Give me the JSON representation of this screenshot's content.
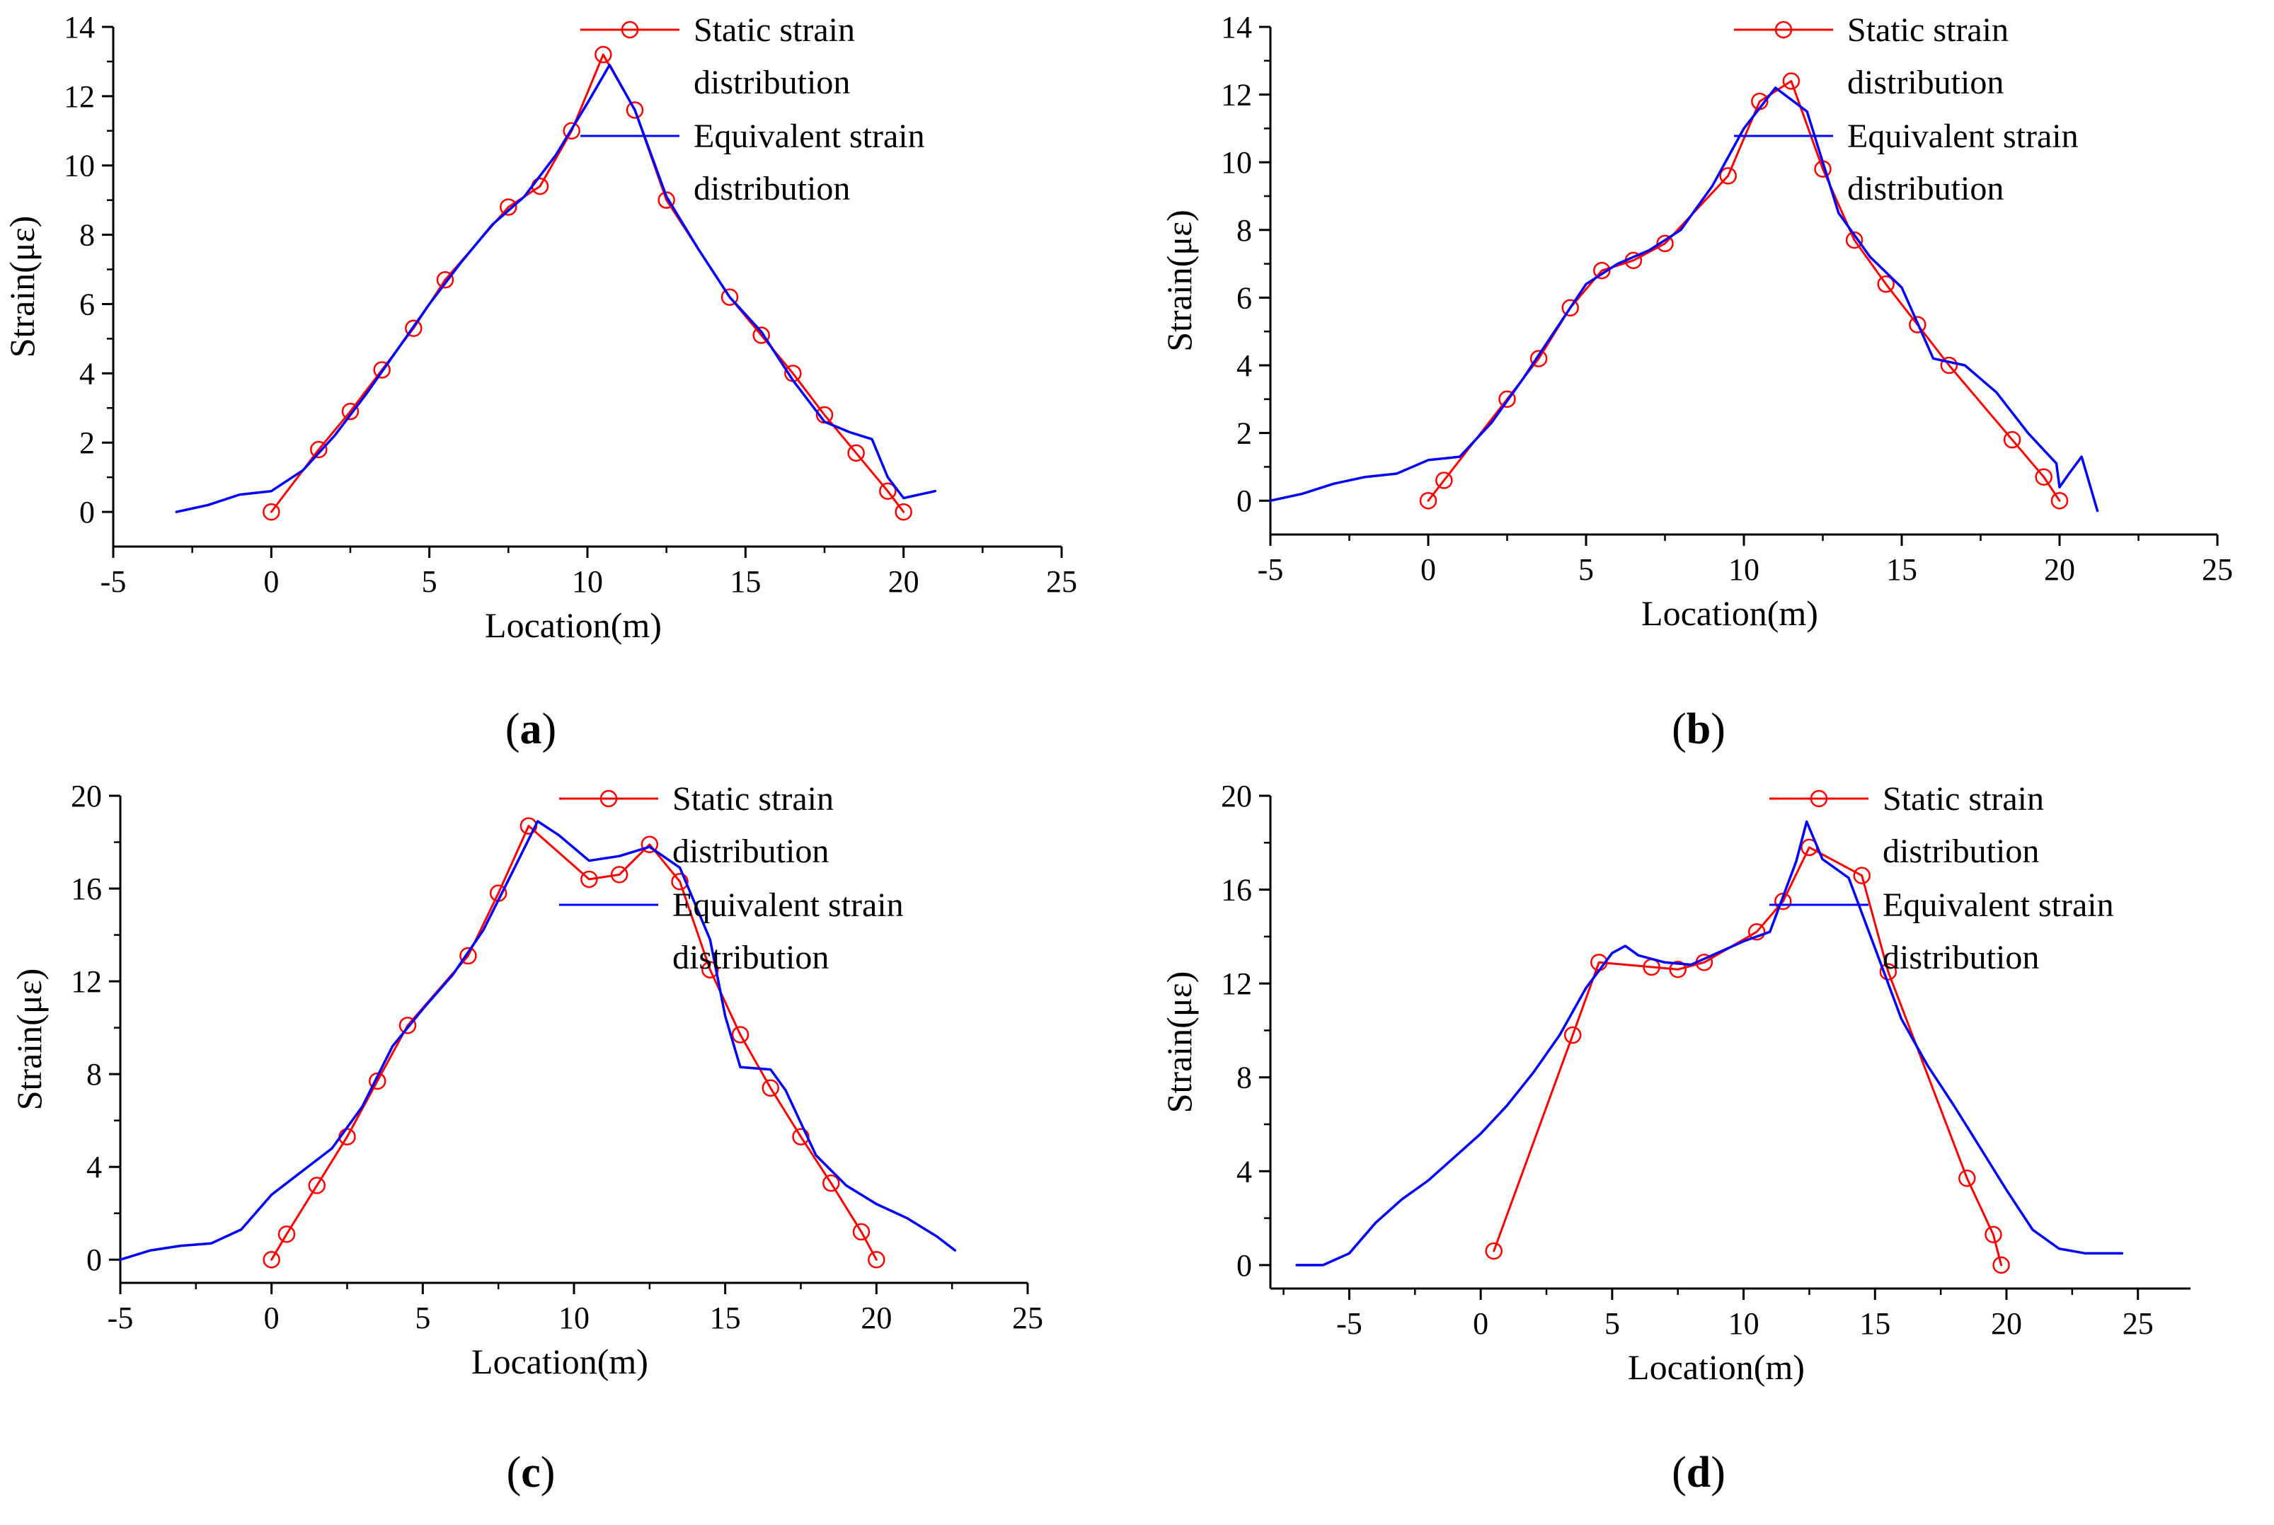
{
  "figure": {
    "colors": {
      "static": "#ff0000",
      "equivalent": "#0000ff",
      "axis": "#000000"
    },
    "legend": {
      "static_line1": "Static strain",
      "static_line2": "distribution",
      "equivalent_line1": "Equivalent strain",
      "equivalent_line2": "distribution"
    }
  },
  "chart_data": [
    {
      "id": "a",
      "panel_label": "a",
      "type": "line",
      "xlabel": "Location(m)",
      "ylabel": "Strain(με)",
      "xlim": [
        -5,
        25
      ],
      "ylim": [
        -1,
        14
      ],
      "xticks": [
        -5,
        0,
        5,
        10,
        15,
        20,
        25
      ],
      "yticks": [
        0,
        2,
        4,
        6,
        8,
        10,
        12,
        14
      ],
      "series": [
        {
          "name": "Static strain distribution",
          "style": "line-markers",
          "x": [
            0,
            1.5,
            2.5,
            3.5,
            4.5,
            5.5,
            7.5,
            8.5,
            9.5,
            10.5,
            11.5,
            12.5,
            14.5,
            15.5,
            16.5,
            17.5,
            18.5,
            19.5,
            20
          ],
          "y": [
            0,
            1.8,
            2.9,
            4.1,
            5.3,
            6.7,
            8.8,
            9.4,
            11.0,
            13.2,
            11.6,
            9.0,
            6.2,
            5.1,
            4.0,
            2.8,
            1.7,
            0.6,
            0
          ]
        },
        {
          "name": "Equivalent strain distribution",
          "style": "line",
          "x": [
            -3,
            -2,
            -1,
            0,
            1,
            2,
            3,
            4,
            5,
            6,
            7,
            8,
            9,
            10,
            10.7,
            11.5,
            12.5,
            13.5,
            14.5,
            15.5,
            16.5,
            17.5,
            18.3,
            19,
            19.5,
            20,
            20.5,
            21
          ],
          "y": [
            0,
            0.2,
            0.5,
            0.6,
            1.2,
            2.2,
            3.4,
            4.7,
            6.0,
            7.2,
            8.3,
            9.1,
            10.3,
            11.8,
            12.9,
            11.6,
            9.1,
            7.6,
            6.2,
            5.2,
            3.8,
            2.6,
            2.3,
            2.1,
            1.0,
            0.4,
            0.5,
            0.6
          ]
        }
      ]
    },
    {
      "id": "b",
      "panel_label": "b",
      "type": "line",
      "xlabel": "Location(m)",
      "ylabel": "Strain(με)",
      "xlim": [
        -5,
        25
      ],
      "ylim": [
        -1,
        14
      ],
      "xticks": [
        -5,
        0,
        5,
        10,
        15,
        20,
        25
      ],
      "yticks": [
        0,
        2,
        4,
        6,
        8,
        10,
        12,
        14
      ],
      "series": [
        {
          "name": "Static strain distribution",
          "style": "line-markers",
          "x": [
            0,
            0.5,
            2.5,
            3.5,
            4.5,
            5.5,
            6.5,
            7.5,
            9.5,
            10.5,
            11.5,
            12.5,
            13.5,
            14.5,
            15.5,
            16.5,
            18.5,
            19.5,
            20
          ],
          "y": [
            0,
            0.6,
            3.0,
            4.2,
            5.7,
            6.8,
            7.1,
            7.6,
            9.6,
            11.8,
            12.4,
            9.8,
            7.7,
            6.4,
            5.2,
            4.0,
            1.8,
            0.7,
            0
          ]
        },
        {
          "name": "Equivalent strain distribution",
          "style": "line",
          "x": [
            -5,
            -4,
            -3,
            -2,
            -1,
            0,
            1,
            2,
            3,
            4,
            5,
            6,
            7,
            8,
            9,
            10,
            11,
            12,
            13,
            14,
            15,
            16,
            17,
            18,
            19,
            19.9,
            20,
            20.3,
            20.7,
            21.2
          ],
          "y": [
            0,
            0.2,
            0.5,
            0.7,
            0.8,
            1.2,
            1.3,
            2.3,
            3.6,
            5.0,
            6.4,
            7.0,
            7.4,
            8.0,
            9.3,
            11.0,
            12.2,
            11.5,
            8.5,
            7.2,
            6.3,
            4.2,
            4.0,
            3.2,
            2.0,
            1.1,
            0.4,
            0.8,
            1.3,
            -0.3
          ]
        }
      ]
    },
    {
      "id": "c",
      "panel_label": "c",
      "type": "line",
      "xlabel": "Location(m)",
      "ylabel": "Strain(με)",
      "xlim": [
        -5,
        25
      ],
      "ylim": [
        -1,
        20
      ],
      "xticks": [
        -5,
        0,
        5,
        10,
        15,
        20,
        25
      ],
      "yticks": [
        0,
        4,
        8,
        12,
        16,
        20
      ],
      "series": [
        {
          "name": "Static strain distribution",
          "style": "line-markers",
          "x": [
            0,
            0.5,
            1.5,
            2.5,
            3.5,
            4.5,
            6.5,
            7.5,
            8.5,
            10.5,
            11.5,
            12.5,
            13.5,
            14.5,
            15.5,
            16.5,
            17.5,
            18.5,
            19.5,
            20
          ],
          "y": [
            0,
            1.1,
            3.2,
            5.3,
            7.7,
            10.1,
            13.1,
            15.8,
            18.7,
            16.4,
            16.6,
            17.9,
            16.3,
            12.5,
            9.7,
            7.4,
            5.3,
            3.3,
            1.2,
            0
          ]
        },
        {
          "name": "Equivalent strain distribution",
          "style": "line",
          "x": [
            -5,
            -4,
            -3,
            -2,
            -1,
            0,
            1,
            2,
            3,
            4,
            5,
            6,
            7,
            8,
            8.8,
            9.5,
            10.5,
            11.5,
            12.5,
            13.5,
            14.5,
            15,
            15.5,
            16.5,
            17,
            18,
            19,
            20,
            21,
            22,
            22.6
          ],
          "y": [
            0,
            0.4,
            0.6,
            0.7,
            1.3,
            2.8,
            3.8,
            4.8,
            6.6,
            9.2,
            10.8,
            12.3,
            14.2,
            16.8,
            18.9,
            18.3,
            17.2,
            17.4,
            17.8,
            16.9,
            13.8,
            10.5,
            8.3,
            8.2,
            7.3,
            4.5,
            3.2,
            2.4,
            1.8,
            1.0,
            0.4
          ]
        }
      ]
    },
    {
      "id": "d",
      "panel_label": "d",
      "type": "line",
      "xlabel": "Location(m)",
      "ylabel": "Strain(με)",
      "xlim": [
        -8,
        27
      ],
      "ylim": [
        -1,
        20
      ],
      "xticks": [
        -5,
        0,
        5,
        10,
        15,
        20,
        25
      ],
      "yticks": [
        0,
        4,
        8,
        12,
        16,
        20
      ],
      "series": [
        {
          "name": "Static strain distribution",
          "style": "line-markers",
          "x": [
            0.5,
            3.5,
            4.5,
            6.5,
            7.5,
            8.5,
            10.5,
            11.5,
            12.5,
            14.5,
            15.5,
            18.5,
            19.5,
            19.8
          ],
          "y": [
            0.6,
            9.8,
            12.9,
            12.7,
            12.6,
            12.9,
            14.2,
            15.5,
            17.8,
            16.6,
            12.5,
            3.7,
            1.3,
            0
          ]
        },
        {
          "name": "Equivalent strain distribution",
          "style": "line",
          "x": [
            -7,
            -6,
            -5,
            -4,
            -3,
            -2,
            -1,
            0,
            1,
            2,
            3,
            4,
            5,
            5.5,
            6,
            7,
            8,
            9,
            10,
            11,
            12,
            12.4,
            13,
            14,
            15,
            16,
            17,
            18,
            19,
            20,
            21,
            22,
            23,
            24,
            24.4
          ],
          "y": [
            0,
            0,
            0.5,
            1.8,
            2.8,
            3.6,
            4.6,
            5.6,
            6.8,
            8.2,
            9.8,
            11.8,
            13.3,
            13.6,
            13.2,
            12.9,
            12.8,
            13.3,
            13.8,
            14.2,
            17.2,
            18.9,
            17.3,
            16.5,
            13.5,
            10.5,
            8.5,
            6.8,
            5.0,
            3.2,
            1.5,
            0.7,
            0.5,
            0.5,
            0.5
          ]
        }
      ]
    }
  ]
}
